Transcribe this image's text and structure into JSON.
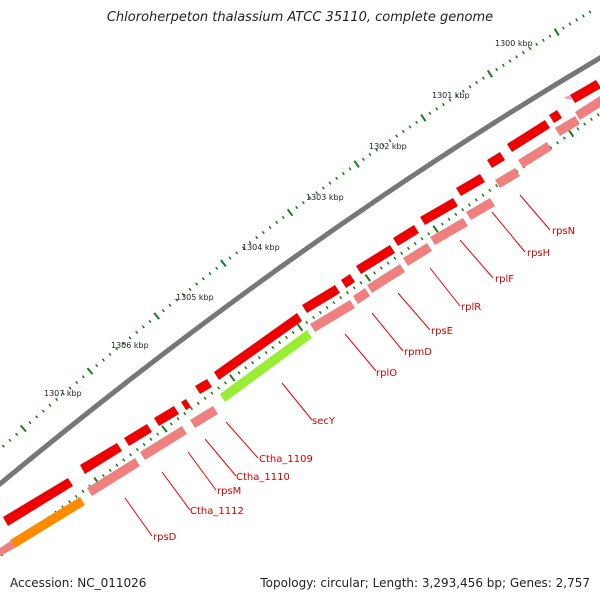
{
  "title": "Chloroherpeton thalassium ATCC 35110, complete genome",
  "footer": {
    "accession": "Accession: NC_011026",
    "summary": "Topology: circular; Length: 3,293,456 bp; Genes: 2,757"
  },
  "ticks": [
    "1300 kbp",
    "1301 kbp",
    "1302 kbp",
    "1303 kbp",
    "1304 kbp",
    "1305 kbp",
    "1306 kbp",
    "1307 kbp"
  ],
  "genes": [
    "rpsN",
    "rpsH",
    "rplF",
    "rplR",
    "rpsE",
    "rpmD",
    "rplO",
    "secY",
    "Ctha_1109",
    "Ctha_1110",
    "rpsM",
    "Ctha_1112",
    "rpsD"
  ],
  "colors": {
    "backbone": "#7a7a7a",
    "gene": "#ee0000",
    "cds": "#f08080",
    "secY": "#99ee33",
    "other": "#ff8c00",
    "tick": "#1a7a1a"
  }
}
